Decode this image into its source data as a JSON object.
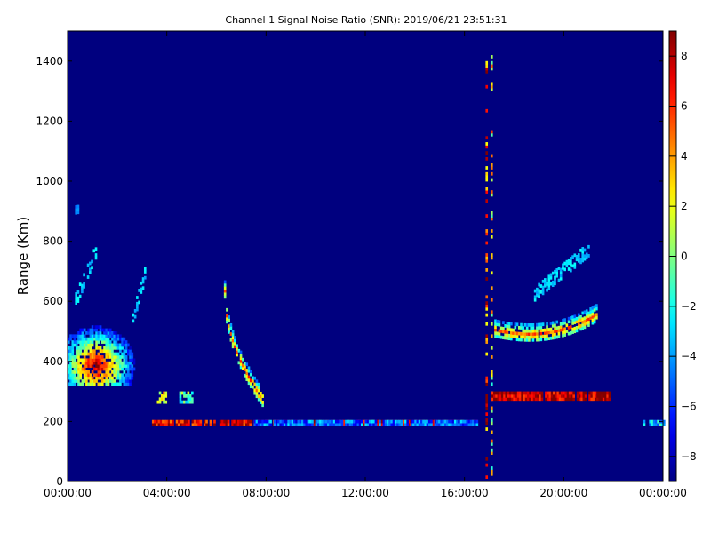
{
  "chart_data": {
    "type": "heatmap",
    "title": "Channel 1 Signal Noise Ratio (SNR): 2019/06/21 23:51:31",
    "ylabel": "Range (Km)",
    "xlabel": "",
    "x_unit": "hours",
    "xlim": [
      0,
      24
    ],
    "ylim": [
      0,
      1500
    ],
    "x_ticks": [
      0,
      4,
      8,
      12,
      16,
      20,
      24
    ],
    "x_tick_labels": [
      "00:00:00",
      "04:00:00",
      "08:00:00",
      "12:00:00",
      "16:00:00",
      "20:00:00",
      "00:00:00"
    ],
    "y_ticks": [
      0,
      200,
      400,
      600,
      800,
      1000,
      1200,
      1400
    ],
    "y_tick_labels": [
      "0",
      "200",
      "400",
      "600",
      "800",
      "1000",
      "1200",
      "1400"
    ],
    "colorbar": {
      "colormap": "jet",
      "vmin": -9,
      "vmax": 9,
      "ticks": [
        -8,
        -6,
        -4,
        -2,
        0,
        2,
        4,
        6,
        8
      ],
      "tick_labels": [
        "−8",
        "−6",
        "−4",
        "−2",
        "0",
        "2",
        "4",
        "6",
        "8"
      ]
    },
    "background_value": -9,
    "grid": false,
    "features": [
      {
        "kind": "blob",
        "t0": 0.0,
        "t1": 3.0,
        "r0": 320,
        "r1": 570,
        "peak": 9
      },
      {
        "kind": "streak",
        "t0": 0.3,
        "t1": 1.1,
        "r0": 600,
        "r1": 760,
        "value": -3
      },
      {
        "kind": "streak",
        "t0": 2.6,
        "t1": 3.1,
        "r0": 540,
        "r1": 690,
        "value": -3
      },
      {
        "kind": "streak",
        "t0": 0.3,
        "t1": 0.45,
        "r0": 890,
        "r1": 930,
        "value": -4
      },
      {
        "kind": "patch",
        "t0": 3.6,
        "t1": 4.0,
        "r0": 260,
        "r1": 300,
        "value": 2
      },
      {
        "kind": "patch",
        "t0": 4.5,
        "t1": 5.0,
        "r0": 260,
        "r1": 300,
        "value": -1
      },
      {
        "kind": "band",
        "t0": 3.4,
        "t1": 16.5,
        "r0": 185,
        "r1": 205,
        "value": 7
      },
      {
        "kind": "band",
        "t0": 7.5,
        "t1": 16.5,
        "r0": 185,
        "r1": 205,
        "value": -5
      },
      {
        "kind": "arc",
        "t0": 6.3,
        "t1": 7.9,
        "r0": 630,
        "r1": 260,
        "value": 5
      },
      {
        "kind": "column",
        "t0": 16.85,
        "t1": 16.95,
        "r0": 0,
        "r1": 1450,
        "value": 6
      },
      {
        "kind": "column",
        "t0": 17.05,
        "t1": 17.12,
        "r0": 0,
        "r1": 1440,
        "value": 2
      },
      {
        "kind": "band",
        "t0": 17.0,
        "t1": 21.8,
        "r0": 270,
        "r1": 300,
        "value": 8
      },
      {
        "kind": "arc",
        "t0": 17.2,
        "t1": 21.3,
        "r0": 500,
        "r1": 590,
        "value": 5
      },
      {
        "kind": "streak",
        "t0": 18.8,
        "t1": 21.0,
        "r0": 620,
        "r1": 770,
        "value": -3
      },
      {
        "kind": "band",
        "t0": 23.2,
        "t1": 24.0,
        "r0": 185,
        "r1": 205,
        "value": -3
      }
    ]
  }
}
